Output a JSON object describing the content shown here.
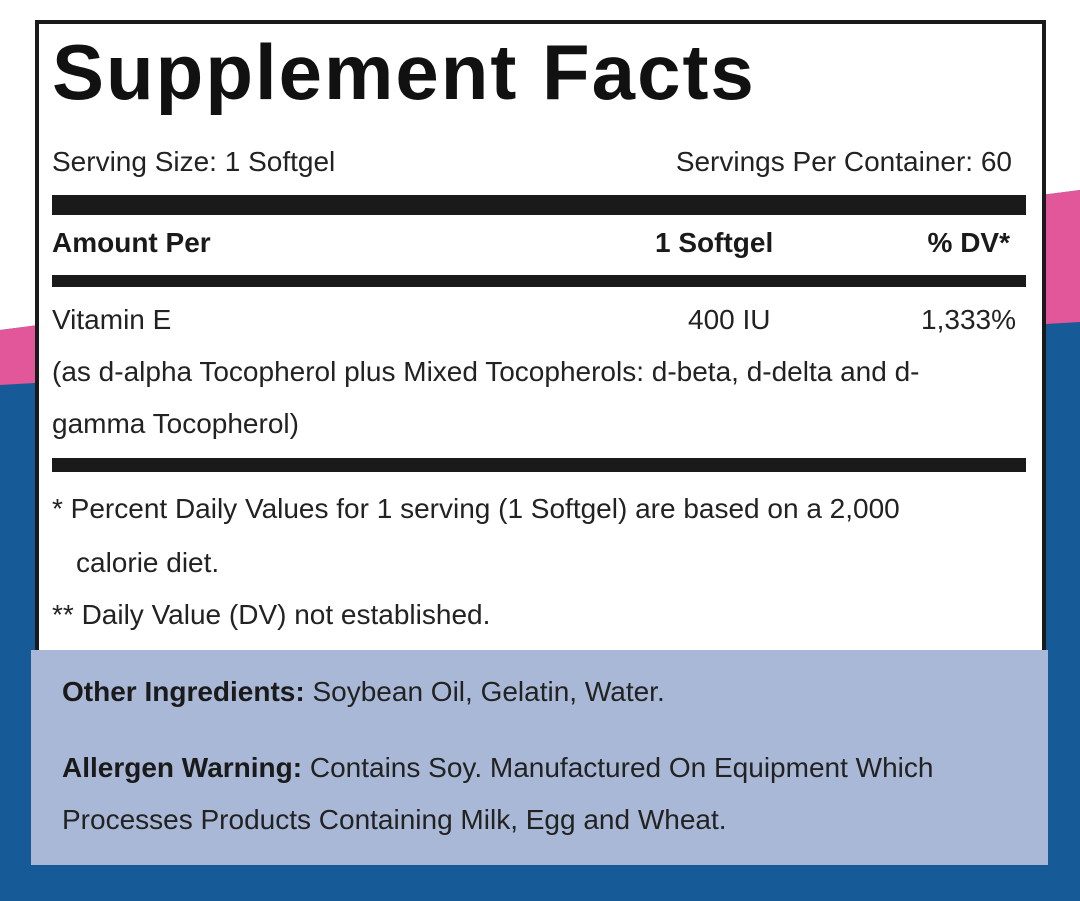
{
  "title": "Supplement Facts",
  "serving_size": "Serving Size: 1 Softgel",
  "servings_per_container": "Servings Per Container: 60",
  "table": {
    "header": [
      "Amount Per",
      "1 Softgel",
      "% DV*"
    ],
    "rows": [
      [
        "Vitamin E",
        "400 IU",
        "1,333%"
      ]
    ],
    "row_note": "(as d-alpha Tocopherol plus Mixed Tocopherols: d-beta, d-delta and d-gamma Tocopherol)"
  },
  "footnotes": [
    "* Percent Daily Values for 1 serving (1 Softgel) are based on a 2,000 calorie diet.",
    "** Daily Value (DV) not established."
  ],
  "other_ingredients": {
    "label": "Other Ingredients:",
    "text": "Soybean Oil, Gelatin, Water."
  },
  "allergen_warning": {
    "label": "Allergen Warning:",
    "text": "Contains Soy. Manufactured On Equipment Which Processes Products Containing Milk, Egg and Wheat."
  }
}
